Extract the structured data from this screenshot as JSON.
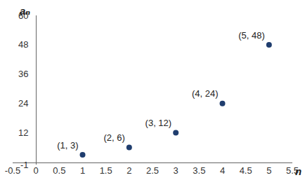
{
  "chart_data": {
    "type": "scatter",
    "x_label": "n",
    "y_label": "aₙ",
    "x": [
      1,
      2,
      3,
      4,
      5
    ],
    "values": [
      3,
      6,
      12,
      24,
      48
    ],
    "value_labels": [
      "(1, 3)",
      "(2, 6)",
      "(3, 12)",
      "(4, 24)",
      "(5, 48)"
    ],
    "data_labels": true,
    "color": "#1f3d6e",
    "marker": "circle",
    "xlim": [
      -0.5,
      5.5
    ],
    "xticks": [
      -0.5,
      0,
      0.5,
      1,
      1.5,
      2,
      2.5,
      3,
      3.5,
      4,
      4.5,
      5,
      5.5
    ],
    "ylim": [
      -1,
      60
    ],
    "yticks": [
      -1,
      12,
      24,
      36,
      48,
      60
    ],
    "grid": false
  }
}
